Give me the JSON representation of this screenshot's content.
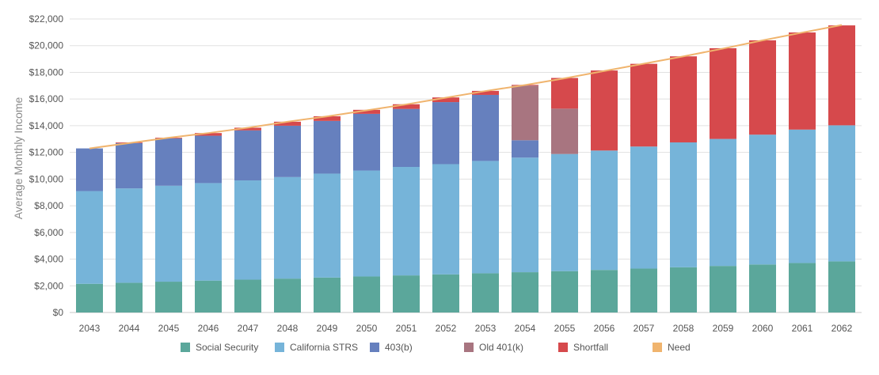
{
  "chart_data": {
    "type": "bar",
    "stacked": true,
    "ylabel": "Average Monthly Income",
    "xlabel": "",
    "ylim": [
      0,
      22000
    ],
    "yticks": [
      "$0",
      "$2,000",
      "$4,000",
      "$6,000",
      "$8,000",
      "$10,000",
      "$12,000",
      "$14,000",
      "$16,000",
      "$18,000",
      "$20,000",
      "$22,000"
    ],
    "ytick_values": [
      0,
      2000,
      4000,
      6000,
      8000,
      10000,
      12000,
      14000,
      16000,
      18000,
      20000,
      22000
    ],
    "grid": true,
    "legend_position": "bottom",
    "categories": [
      "2043",
      "2044",
      "2045",
      "2046",
      "2047",
      "2048",
      "2049",
      "2050",
      "2051",
      "2052",
      "2053",
      "2054",
      "2055",
      "2056",
      "2057",
      "2058",
      "2059",
      "2060",
      "2061",
      "2062"
    ],
    "series": [
      {
        "name": "Social Security",
        "color": "#5ba79b",
        "values": [
          2150,
          2230,
          2310,
          2390,
          2460,
          2540,
          2620,
          2700,
          2780,
          2860,
          2940,
          3020,
          3100,
          3190,
          3290,
          3390,
          3490,
          3600,
          3710,
          3830
        ]
      },
      {
        "name": "California STRS",
        "color": "#76b4d9",
        "values": [
          6950,
          7070,
          7190,
          7310,
          7440,
          7610,
          7790,
          7940,
          8130,
          8260,
          8420,
          8590,
          8780,
          8950,
          9150,
          9360,
          9520,
          9730,
          10000,
          10200
        ]
      },
      {
        "name": "403(b)",
        "color": "#6680be",
        "values": [
          3200,
          3400,
          3550,
          3550,
          3750,
          3850,
          3950,
          4250,
          4350,
          4650,
          4950,
          1300,
          0,
          0,
          0,
          0,
          0,
          0,
          0,
          0
        ]
      },
      {
        "name": "Old 401(k)",
        "color": "#a87580",
        "values": [
          0,
          0,
          0,
          0,
          0,
          0,
          0,
          0,
          0,
          0,
          0,
          4100,
          3400,
          0,
          0,
          0,
          0,
          0,
          0,
          0
        ]
      },
      {
        "name": "Shortfall",
        "color": "#d6494c",
        "values": [
          0,
          50,
          50,
          200,
          200,
          300,
          350,
          300,
          350,
          350,
          300,
          50,
          2300,
          6000,
          6200,
          6450,
          6800,
          7070,
          7280,
          7490
        ]
      }
    ],
    "need": {
      "name": "Need",
      "color": "#f0b46e",
      "values": [
        12300,
        12700,
        13100,
        13450,
        13850,
        14300,
        14700,
        15150,
        15600,
        16100,
        16600,
        17050,
        17550,
        18100,
        18650,
        19200,
        19780,
        20400,
        20980,
        21550
      ]
    }
  }
}
